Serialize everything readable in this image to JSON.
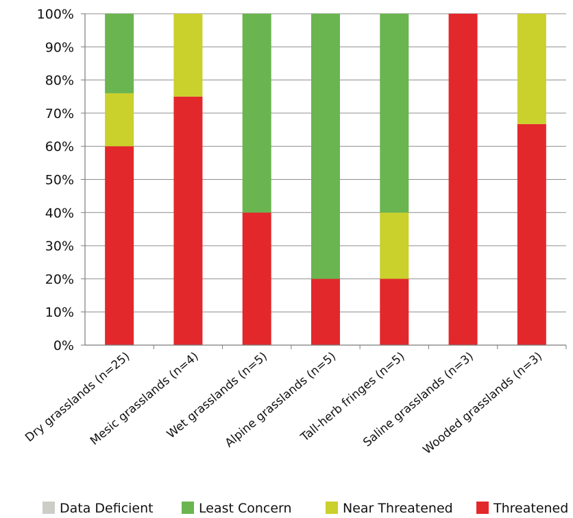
{
  "chart_data": {
    "type": "bar",
    "stacked": true,
    "title": "",
    "xlabel": "",
    "ylabel": "",
    "ylim": [
      0,
      100
    ],
    "y_ticks": [
      "0%",
      "10%",
      "20%",
      "30%",
      "40%",
      "50%",
      "60%",
      "70%",
      "80%",
      "90%",
      "100%"
    ],
    "grid": true,
    "legend_position": "bottom",
    "categories": [
      "Dry grasslands (n=25)",
      "Mesic grasslands (n=4)",
      "Wet grasslands (n=5)",
      "Alpine grasslands (n=5)",
      "Tall-herb fringes (n=5)",
      "Saline grasslands (n=3)",
      "Wooded grasslands (n=3)"
    ],
    "series": [
      {
        "name": "Threatened",
        "color": "#e3282b",
        "values": [
          60,
          75,
          40,
          20,
          20,
          100,
          66.7
        ]
      },
      {
        "name": "Near Threatened",
        "color": "#cad02c",
        "values": [
          16,
          25,
          0,
          0,
          20,
          0,
          33.3
        ]
      },
      {
        "name": "Least Concern",
        "color": "#6ab550",
        "values": [
          24,
          0,
          60,
          80,
          60,
          0,
          0
        ]
      },
      {
        "name": "Data Deficient",
        "color": "#cdcdc8",
        "values": [
          0,
          0,
          0,
          0,
          0,
          0,
          0
        ]
      }
    ],
    "legend_order": [
      "Data Deficient",
      "Least Concern",
      "Near Threatened",
      "Threatened"
    ]
  }
}
